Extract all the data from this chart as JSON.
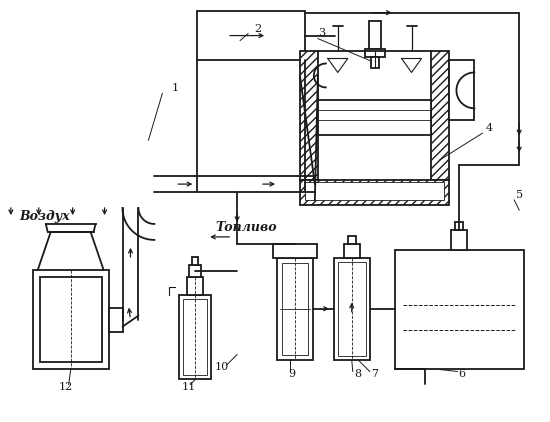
{
  "bg": "#ffffff",
  "lc": "#1a1a1a",
  "figsize": [
    5.5,
    4.22
  ],
  "dpi": 100,
  "vozdukh": "Воздух",
  "toplivo": "Топливо"
}
